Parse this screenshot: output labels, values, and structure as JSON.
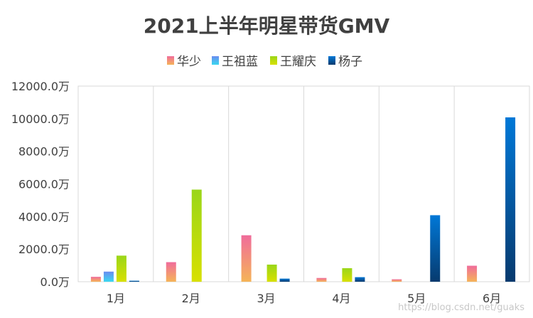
{
  "chart_data": {
    "type": "bar",
    "title": "2021上半年明星带货GMV",
    "categories": [
      "1月",
      "2月",
      "3月",
      "4月",
      "5月",
      "6月"
    ],
    "series": [
      {
        "name": "华少",
        "values": [
          300,
          1200,
          2850,
          230,
          150,
          980
        ],
        "color_top": "#f06c9b",
        "color_bottom": "#f5b458"
      },
      {
        "name": "王祖蓝",
        "values": [
          620,
          0,
          0,
          0,
          0,
          0
        ],
        "color_top": "#6a8cf0",
        "color_bottom": "#3ad8f0"
      },
      {
        "name": "王耀庆",
        "values": [
          1600,
          5650,
          1050,
          830,
          0,
          0
        ],
        "color_top": "#9ad61a",
        "color_bottom": "#d8e000"
      },
      {
        "name": "杨子",
        "values": [
          60,
          0,
          190,
          280,
          4080,
          10080
        ],
        "color_top": "#0078d7",
        "color_bottom": "#073a6e"
      }
    ],
    "y_ticks": [
      "0.0万",
      "2000.0万",
      "4000.0万",
      "6000.0万",
      "8000.0万",
      "10000.0万",
      "12000.0万"
    ],
    "ylim": [
      0,
      12000
    ],
    "legend_position": "top",
    "grid": "vertical separators between categories"
  },
  "watermark": "https://blog.csdn.net/guaks"
}
